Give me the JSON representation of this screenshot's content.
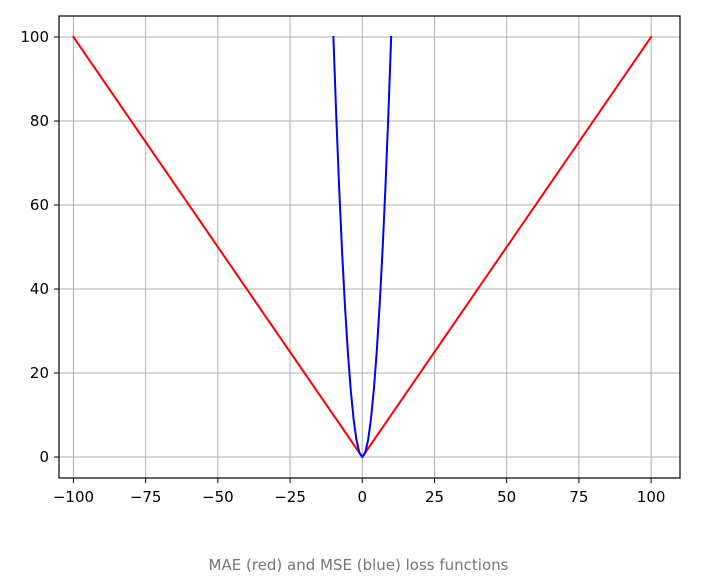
{
  "caption": "MAE (red) and MSE (blue) loss functions",
  "chart_data": {
    "type": "line",
    "title": "",
    "xlabel": "",
    "ylabel": "",
    "xlim": [
      -105,
      110
    ],
    "ylim": [
      -5,
      105
    ],
    "grid": true,
    "x_ticks": [
      -100,
      -75,
      -50,
      -25,
      0,
      25,
      50,
      75,
      100
    ],
    "x_tick_labels": [
      "−100",
      "−75",
      "−50",
      "−25",
      "0",
      "25",
      "50",
      "75",
      "100"
    ],
    "y_ticks": [
      0,
      20,
      40,
      60,
      80,
      100
    ],
    "y_tick_labels": [
      "0",
      "20",
      "40",
      "60",
      "80",
      "100"
    ],
    "series": [
      {
        "color": "#ff0000",
        "x": [
          -100,
          0,
          100
        ],
        "y": [
          100,
          0,
          100
        ]
      },
      {
        "color": "#0000ff",
        "x": [
          -10,
          -9,
          -8,
          -7,
          -6,
          -5,
          -4,
          -3,
          -2,
          -1,
          0,
          1,
          2,
          3,
          4,
          5,
          6,
          7,
          8,
          9,
          10
        ],
        "y": [
          100,
          81,
          64,
          49,
          36,
          25,
          16,
          9,
          4,
          1,
          0,
          1,
          4,
          9,
          16,
          25,
          36,
          49,
          64,
          81,
          100
        ]
      }
    ]
  }
}
